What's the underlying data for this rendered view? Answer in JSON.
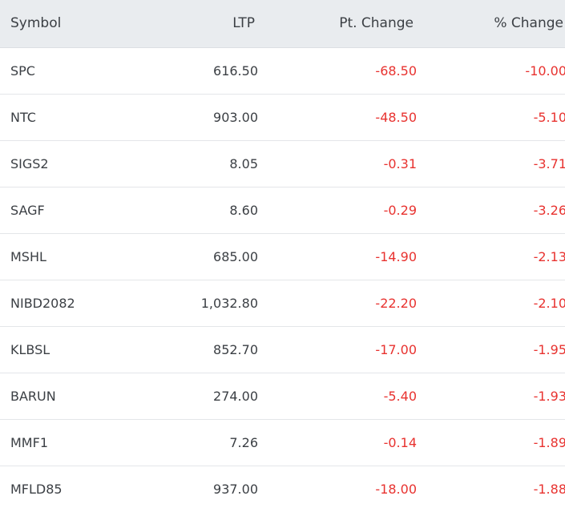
{
  "headers": {
    "symbol": "Symbol",
    "ltp": "LTP",
    "pt_change": "Pt. Change",
    "pct_change": "% Change"
  },
  "colors": {
    "negative": "#e8322f",
    "header_bg": "#e9ecef",
    "text": "#3b3f44"
  },
  "rows": [
    {
      "symbol": "SPC",
      "ltp": "616.50",
      "pt_change": "-68.50",
      "pct_change": "-10.00"
    },
    {
      "symbol": "NTC",
      "ltp": "903.00",
      "pt_change": "-48.50",
      "pct_change": "-5.10"
    },
    {
      "symbol": "SIGS2",
      "ltp": "8.05",
      "pt_change": "-0.31",
      "pct_change": "-3.71"
    },
    {
      "symbol": "SAGF",
      "ltp": "8.60",
      "pt_change": "-0.29",
      "pct_change": "-3.26"
    },
    {
      "symbol": "MSHL",
      "ltp": "685.00",
      "pt_change": "-14.90",
      "pct_change": "-2.13"
    },
    {
      "symbol": "NIBD2082",
      "ltp": "1,032.80",
      "pt_change": "-22.20",
      "pct_change": "-2.10"
    },
    {
      "symbol": "KLBSL",
      "ltp": "852.70",
      "pt_change": "-17.00",
      "pct_change": "-1.95"
    },
    {
      "symbol": "BARUN",
      "ltp": "274.00",
      "pt_change": "-5.40",
      "pct_change": "-1.93"
    },
    {
      "symbol": "MMF1",
      "ltp": "7.26",
      "pt_change": "-0.14",
      "pct_change": "-1.89"
    },
    {
      "symbol": "MFLD85",
      "ltp": "937.00",
      "pt_change": "-18.00",
      "pct_change": "-1.88"
    }
  ]
}
